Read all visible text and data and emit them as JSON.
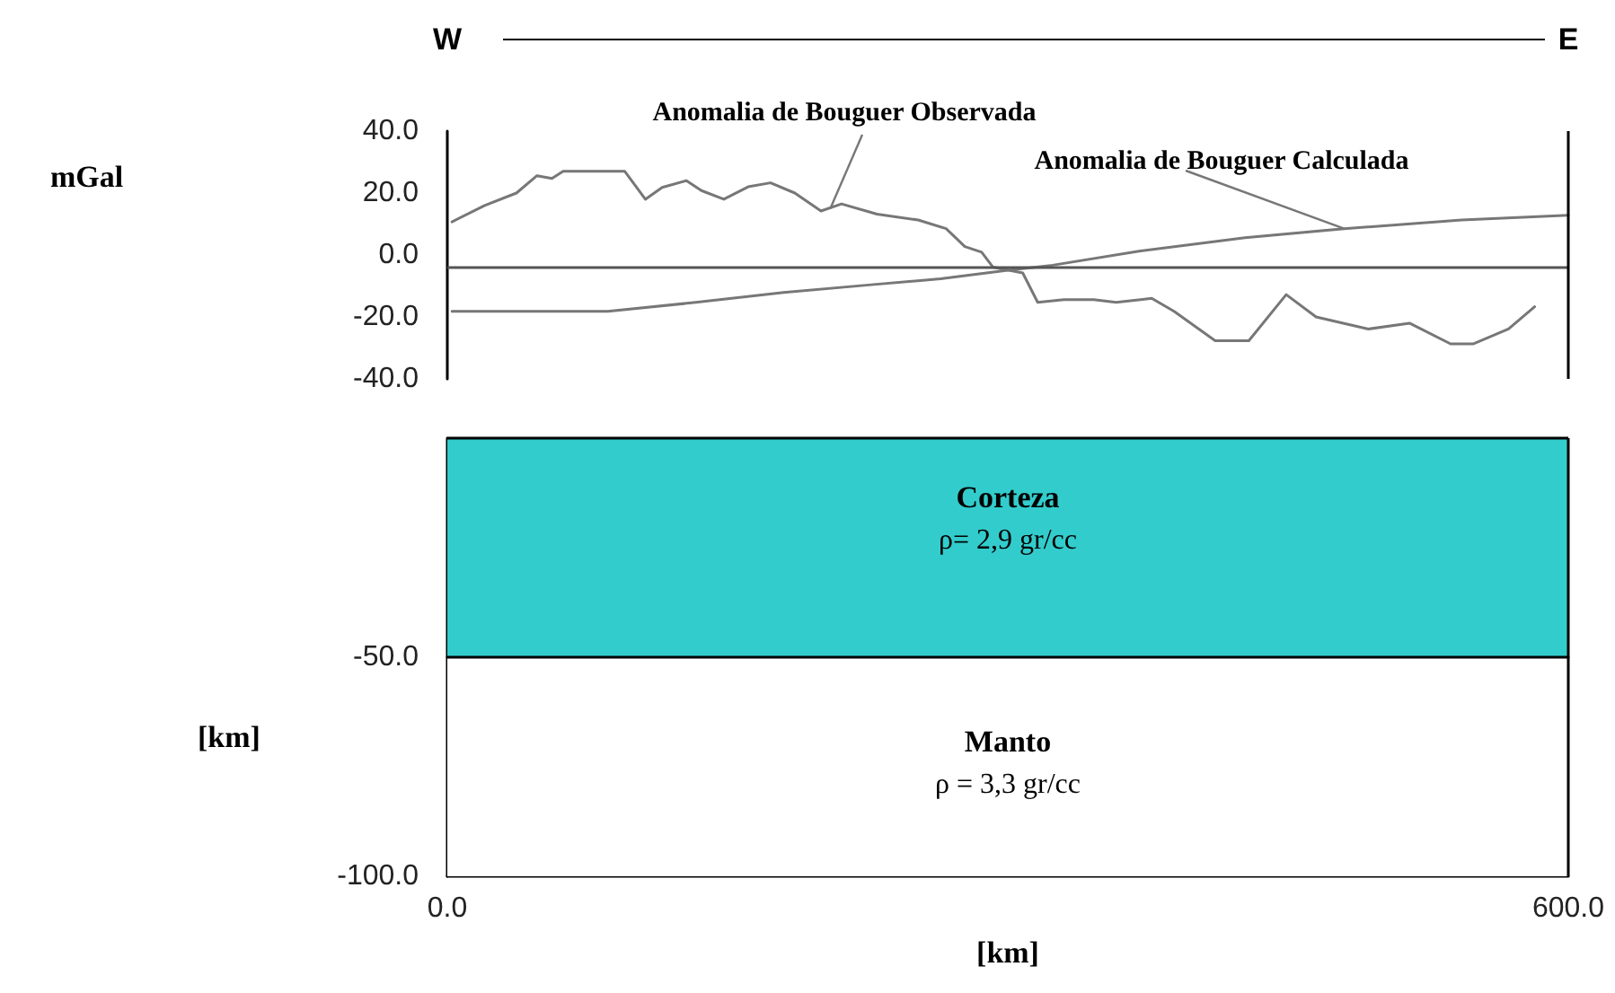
{
  "chart_data": [
    {
      "type": "line",
      "annotations": [
        "W",
        "E"
      ],
      "ylabel": "mGal",
      "ylim": [
        -40,
        40
      ],
      "yticks": [
        {
          "value": -40,
          "label": "-40.0"
        },
        {
          "value": -20,
          "label": "-20.0"
        },
        {
          "value": 0,
          "label": "0.0"
        },
        {
          "value": 20,
          "label": "20.0"
        },
        {
          "value": 40,
          "label": "40.0"
        }
      ],
      "xlim": [
        0,
        600
      ],
      "tick_labels": "y",
      "grid": false,
      "legend": false,
      "marker": "none",
      "line_style": "solid",
      "ref_lines": [
        {
          "axis": "y",
          "value": -4,
          "color": "#555555"
        },
        {
          "axis": "x",
          "value": 600,
          "color": "#000000"
        }
      ],
      "series": [
        {
          "name": "Anomalia de Bouguer Observada",
          "color": "#777777",
          "x": [
            2.5,
            20,
            37,
            48,
            56,
            62,
            95,
            106,
            115,
            128,
            136,
            148,
            161,
            173,
            186,
            200,
            211,
            230,
            252,
            267,
            277,
            286,
            292,
            308,
            316,
            330,
            346,
            358,
            377,
            389,
            411,
            429,
            449,
            465,
            493,
            515,
            537,
            549,
            568,
            582
          ],
          "values": [
            10.7,
            16,
            20,
            25.6,
            24.7,
            27,
            27,
            18,
            21.8,
            24,
            20.8,
            18,
            22,
            23.3,
            20,
            14.2,
            16.5,
            13.2,
            11.3,
            8.5,
            2.7,
            0.9,
            -3.9,
            -5.8,
            -15.3,
            -14.4,
            -14.4,
            -15.3,
            -14,
            -18.2,
            -27.7,
            -27.7,
            -12.8,
            -20,
            -23.9,
            -22,
            -28.7,
            -28.7,
            -23.9,
            -16.7
          ]
        },
        {
          "name": "Anomalia de Bouguer Calculada",
          "color": "#777777",
          "x": [
            2.5,
            86,
            133,
            180,
            227,
            264,
            300,
            324,
            371,
            427,
            480,
            543,
            600
          ],
          "values": [
            -18.2,
            -18.2,
            -15.3,
            -12.1,
            -9.6,
            -7.7,
            -4.9,
            -3.3,
            1.3,
            5.6,
            8.5,
            11.3,
            12.8
          ]
        }
      ]
    },
    {
      "type": "line",
      "xlabel": "[km]",
      "ylabel": "[km]",
      "xlim": [
        0,
        600
      ],
      "xticks": [
        {
          "value": 0,
          "label": "0.0"
        },
        {
          "value": 600,
          "label": "600.0"
        }
      ],
      "ylim": [
        -100,
        0
      ],
      "yticks": [
        {
          "value": -100,
          "label": "-100.0"
        },
        {
          "value": -50,
          "label": "-50.0"
        }
      ],
      "grid": false,
      "legend": false,
      "marker": "none",
      "ref_lines": [
        {
          "axis": "x",
          "value": 600,
          "color": "#000000"
        },
        {
          "axis": "y",
          "value": 0,
          "color": "#000000"
        }
      ],
      "bands": [
        {
          "axis": "y",
          "from": -50,
          "to": 0,
          "label": "Corteza",
          "color": "#33cccc"
        },
        {
          "axis": "y",
          "from": -100,
          "to": -50,
          "label": "Manto",
          "color": "#ffffff"
        }
      ],
      "annotations": [
        "ρ= 2,9 gr/cc",
        "ρ = 3,3 gr/cc"
      ],
      "series": [
        {
          "color": "#000000",
          "x": [
            0,
            600
          ],
          "values": [
            -50,
            -50
          ]
        }
      ]
    }
  ]
}
